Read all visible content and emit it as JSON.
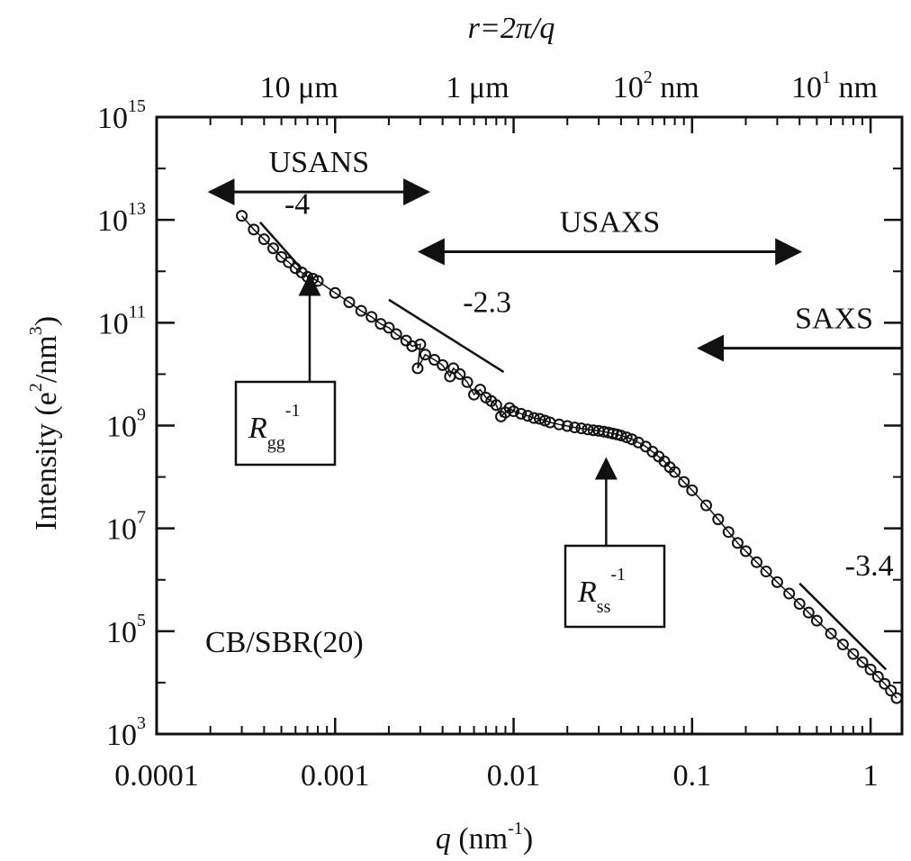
{
  "chart_data": {
    "type": "scatter",
    "xscale": "log",
    "yscale": "log",
    "xlim": [
      0.0001,
      1.5
    ],
    "ylim": [
      1000,
      1000000000000000
    ],
    "xlabel": {
      "var": "q",
      "rest": " (nm",
      "exp": "-1",
      "close": ")"
    },
    "ylabel": {
      "pre": "Intensity (e",
      "exp1": "2",
      "mid": "/nm",
      "exp2": "3",
      "close": ")"
    },
    "top_axis_title": "r=2π/q",
    "x_ticks": [
      {
        "value": 0.0001,
        "label": "0.0001"
      },
      {
        "value": 0.001,
        "label": "0.001"
      },
      {
        "value": 0.01,
        "label": "0.01"
      },
      {
        "value": 0.1,
        "label": "0.1"
      },
      {
        "value": 1,
        "label": "1"
      }
    ],
    "y_ticks": [
      {
        "value": 1000,
        "base": "10",
        "exp": "3"
      },
      {
        "value": 100000,
        "base": "10",
        "exp": "5"
      },
      {
        "value": 10000000,
        "base": "10",
        "exp": "7"
      },
      {
        "value": 1000000000,
        "base": "10",
        "exp": "9"
      },
      {
        "value": 100000000000,
        "base": "10",
        "exp": "11"
      },
      {
        "value": 10000000000000,
        "base": "10",
        "exp": "13"
      },
      {
        "value": 1000000000000000,
        "base": "10",
        "exp": "15"
      }
    ],
    "top_ticks": [
      {
        "q": 0.000628,
        "label": "10 μm"
      },
      {
        "q": 0.00628,
        "label": "1 μm"
      },
      {
        "q": 0.0628,
        "base": "10",
        "exp": "2",
        "unit": " nm"
      },
      {
        "q": 0.628,
        "base": "10",
        "exp": "1",
        "unit": " nm"
      }
    ],
    "sample_label": "CB/SBR(20)",
    "series": [
      {
        "marker": "open-circle",
        "points": [
          [
            0.0003,
            12000000000000.0
          ],
          [
            0.00035,
            6500000000000.0
          ],
          [
            0.0004,
            4200000000000.0
          ],
          [
            0.00045,
            2800000000000.0
          ],
          [
            0.0005,
            1900000000000.0
          ],
          [
            0.00055,
            1500000000000.0
          ],
          [
            0.0006,
            1150000000000.0
          ],
          [
            0.00065,
            950000000000.0
          ],
          [
            0.0007,
            780000000000.0
          ],
          [
            0.00075,
            720000000000.0
          ],
          [
            0.0008,
            650000000000.0
          ],
          [
            0.001,
            380000000000.0
          ],
          [
            0.0012,
            250000000000.0
          ],
          [
            0.0014,
            170000000000.0
          ],
          [
            0.0016,
            130000000000.0
          ],
          [
            0.0018,
            95000000000.0
          ],
          [
            0.002,
            80000000000.0
          ],
          [
            0.0022,
            60000000000.0
          ],
          [
            0.0025,
            45000000000.0
          ],
          [
            0.0027,
            35000000000.0
          ],
          [
            0.003,
            38000000000.0
          ],
          [
            0.0029,
            13000000000.0
          ],
          [
            0.0032,
            24000000000.0
          ],
          [
            0.0036,
            19000000000.0
          ],
          [
            0.004,
            15000000000.0
          ],
          [
            0.0044,
            9000000000.0
          ],
          [
            0.0046,
            13000000000.0
          ],
          [
            0.005,
            10000000000.0
          ],
          [
            0.0055,
            7000000000.0
          ],
          [
            0.006,
            4000000000.0
          ],
          [
            0.0065,
            5000000000.0
          ],
          [
            0.007,
            3500000000.0
          ],
          [
            0.0075,
            3000000000.0
          ],
          [
            0.008,
            2500000000.0
          ],
          [
            0.0085,
            1500000000.0
          ],
          [
            0.009,
            1800000000.0
          ],
          [
            0.0095,
            2200000000.0
          ],
          [
            0.01,
            1900000000.0
          ],
          [
            0.011,
            1700000000.0
          ],
          [
            0.012,
            1550000000.0
          ],
          [
            0.013,
            1400000000.0
          ],
          [
            0.014,
            1350000000.0
          ],
          [
            0.015,
            1250000000.0
          ],
          [
            0.016,
            1150000000.0
          ],
          [
            0.018,
            1050000000.0
          ],
          [
            0.02,
            980000000.0
          ],
          [
            0.022,
            920000000.0
          ],
          [
            0.024,
            880000000.0
          ],
          [
            0.026,
            840000000.0
          ],
          [
            0.028,
            810000000.0
          ],
          [
            0.03,
            790000000.0
          ],
          [
            0.032,
            760000000.0
          ],
          [
            0.034,
            730000000.0
          ],
          [
            0.036,
            700000000.0
          ],
          [
            0.038,
            670000000.0
          ],
          [
            0.04,
            640000000.0
          ],
          [
            0.043,
            590000000.0
          ],
          [
            0.046,
            540000000.0
          ],
          [
            0.05,
            470000000.0
          ],
          [
            0.055,
            390000000.0
          ],
          [
            0.06,
            310000000.0
          ],
          [
            0.065,
            250000000.0
          ],
          [
            0.07,
            200000000.0
          ],
          [
            0.075,
            155000000.0
          ],
          [
            0.08,
            125000000.0
          ],
          [
            0.09,
            80000000.0
          ],
          [
            0.1,
            55000000.0
          ],
          [
            0.12,
            28000000.0
          ],
          [
            0.14,
            15000000.0
          ],
          [
            0.16,
            8500000.0
          ],
          [
            0.18,
            5200000.0
          ],
          [
            0.2,
            3600000.0
          ],
          [
            0.23,
            2200000.0
          ],
          [
            0.26,
            1450000.0
          ],
          [
            0.3,
            900000.0
          ],
          [
            0.35,
            540000.0
          ],
          [
            0.4,
            340000.0
          ],
          [
            0.45,
            230000.0
          ],
          [
            0.5,
            160000.0
          ],
          [
            0.6,
            90000.0
          ],
          [
            0.7,
            55000.0
          ],
          [
            0.8,
            36000.0
          ],
          [
            0.9,
            25000.0
          ],
          [
            1.0,
            18000.0
          ],
          [
            1.1,
            13000.0
          ],
          [
            1.2,
            9500.0
          ],
          [
            1.3,
            7000.0
          ],
          [
            1.4,
            5000.0
          ]
        ]
      }
    ],
    "slope_lines": [
      {
        "label": "-4",
        "q1": 0.00038,
        "I1": 9000000000000.0,
        "q2": 0.00065,
        "I2": 1100000000000.0,
        "label_q": 0.00052,
        "label_I": 13000000000000.0
      },
      {
        "label": "-2.3",
        "q1": 0.002,
        "I1": 280000000000.0,
        "q2": 0.0088,
        "I2": 11000000000.0,
        "label_q": 0.0052,
        "label_I": 160000000000.0
      },
      {
        "label": "-3.4",
        "q1": 0.4,
        "I1": 850000.0,
        "q2": 1.22,
        "I2": 18000.0,
        "label_q": 0.72,
        "label_I": 1200000.0
      }
    ],
    "ranges": [
      {
        "label": "USANS",
        "q_from": 0.0002,
        "q_to": 0.0033,
        "I": 35000000000000.0,
        "heads": "both"
      },
      {
        "label": "USAXS",
        "q_from": 0.003,
        "q_to": 0.4,
        "I": 2400000000000.0,
        "heads": "both"
      },
      {
        "label": "SAXS",
        "q_from": 0.11,
        "q_to": 1.5,
        "I": 32000000000.0,
        "heads": "left"
      }
    ],
    "markers": [
      {
        "symbol": "R",
        "sub": "gg",
        "sup": "-1",
        "target_q": 0.00072
      },
      {
        "symbol": "R",
        "sub": "ss",
        "sup": "-1",
        "target_q": 0.033
      }
    ]
  }
}
